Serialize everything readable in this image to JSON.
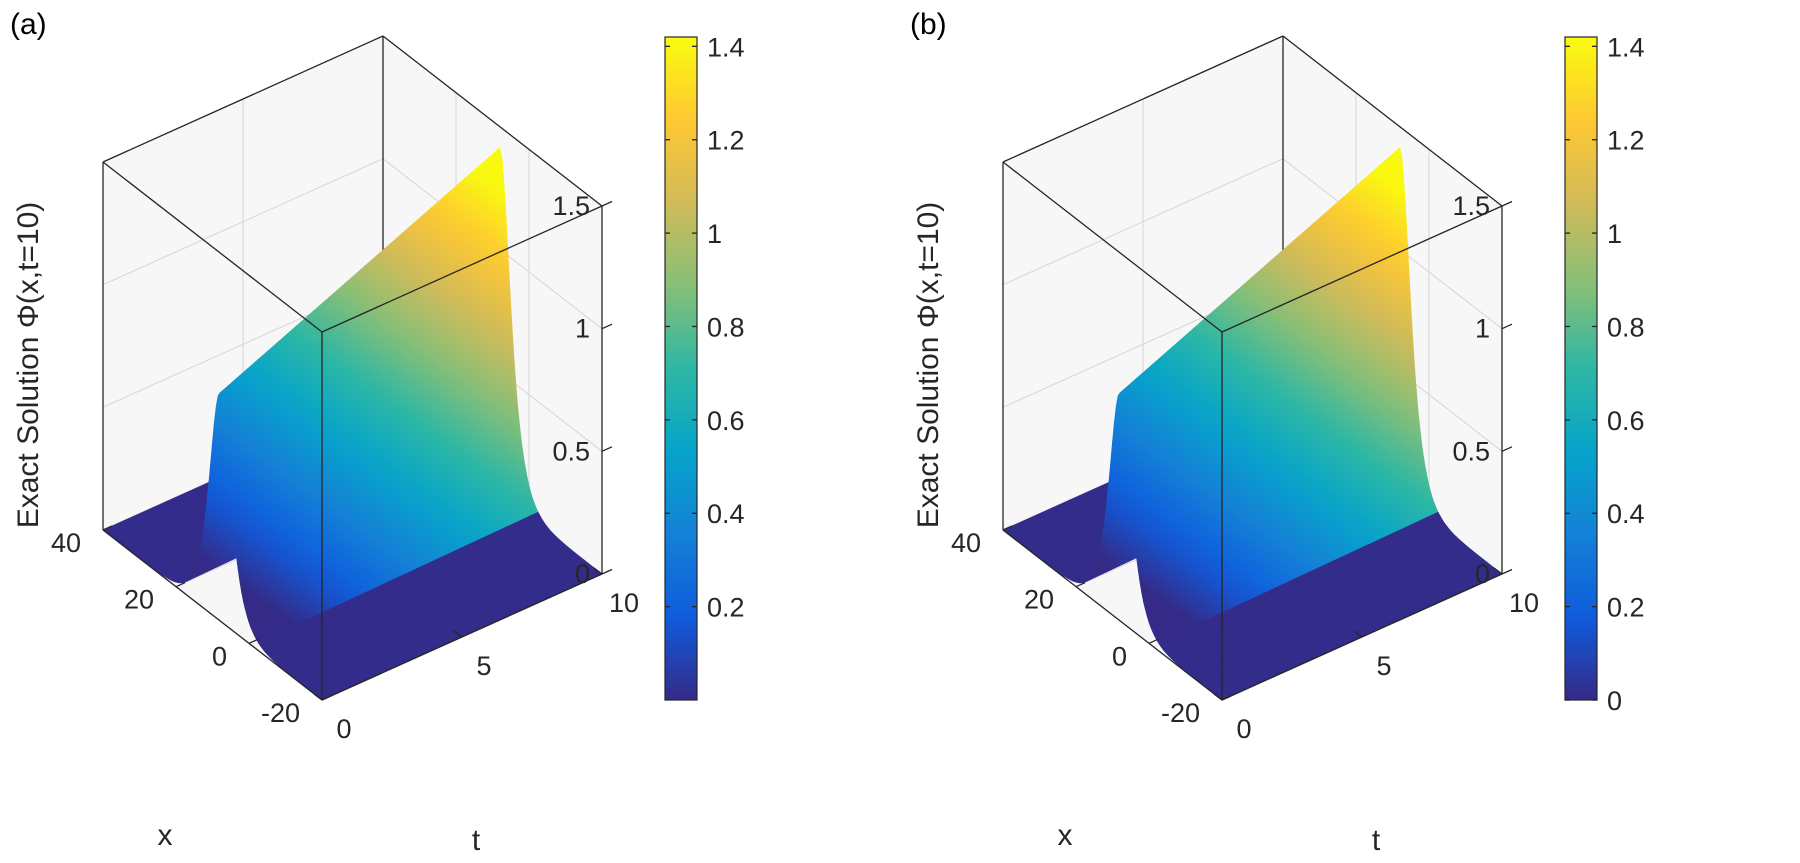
{
  "chart_data": [
    {
      "type": "surface",
      "panel_label": "(a)",
      "zlabel": "Exact Solution Φ(x,t=10)",
      "xlabel": "x",
      "tlabel": "t",
      "x_ticks": [
        "-20",
        "0",
        "20",
        "40"
      ],
      "t_ticks": [
        "0",
        "5",
        "10"
      ],
      "z_ticks": [
        "0",
        "0.5",
        "1",
        "1.5"
      ],
      "x_range": [
        -20,
        40
      ],
      "t_range": [
        0,
        10
      ],
      "z_range": [
        0,
        1.5
      ],
      "peak_value": 1.414,
      "peak_center_x": 8,
      "colorbar": {
        "ticks": [
          "0.2",
          "0.4",
          "0.6",
          "0.8",
          "1",
          "1.2",
          "1.4"
        ],
        "tick_values": [
          0.2,
          0.4,
          0.6,
          0.8,
          1.0,
          1.2,
          1.4
        ],
        "range": [
          0.0,
          1.42
        ],
        "colormap": [
          "#352a87",
          "#0f5cdd",
          "#1481d6",
          "#06a4ca",
          "#2eb7a4",
          "#87bf77",
          "#d1bb59",
          "#fec832",
          "#f9fb0e"
        ]
      }
    },
    {
      "type": "surface",
      "panel_label": "(b)",
      "zlabel": "Exact Solution Φ(x,t=10)",
      "xlabel": "x",
      "tlabel": "t",
      "x_ticks": [
        "-20",
        "0",
        "20",
        "40"
      ],
      "t_ticks": [
        "0",
        "5",
        "10"
      ],
      "z_ticks": [
        "0",
        "0.5",
        "1",
        "1.5"
      ],
      "x_range": [
        -20,
        40
      ],
      "t_range": [
        0,
        10
      ],
      "z_range": [
        0,
        1.5
      ],
      "peak_value": 1.414,
      "peak_center_x": 8,
      "colorbar": {
        "ticks": [
          "0",
          "0.2",
          "0.4",
          "0.6",
          "0.8",
          "1",
          "1.2",
          "1.4"
        ],
        "tick_values": [
          0.0,
          0.2,
          0.4,
          0.6,
          0.8,
          1.0,
          1.2,
          1.4
        ],
        "range": [
          0.0,
          1.42
        ],
        "colormap": [
          "#352a87",
          "#0f5cdd",
          "#1481d6",
          "#06a4ca",
          "#2eb7a4",
          "#87bf77",
          "#d1bb59",
          "#fec832",
          "#f9fb0e"
        ]
      }
    }
  ]
}
